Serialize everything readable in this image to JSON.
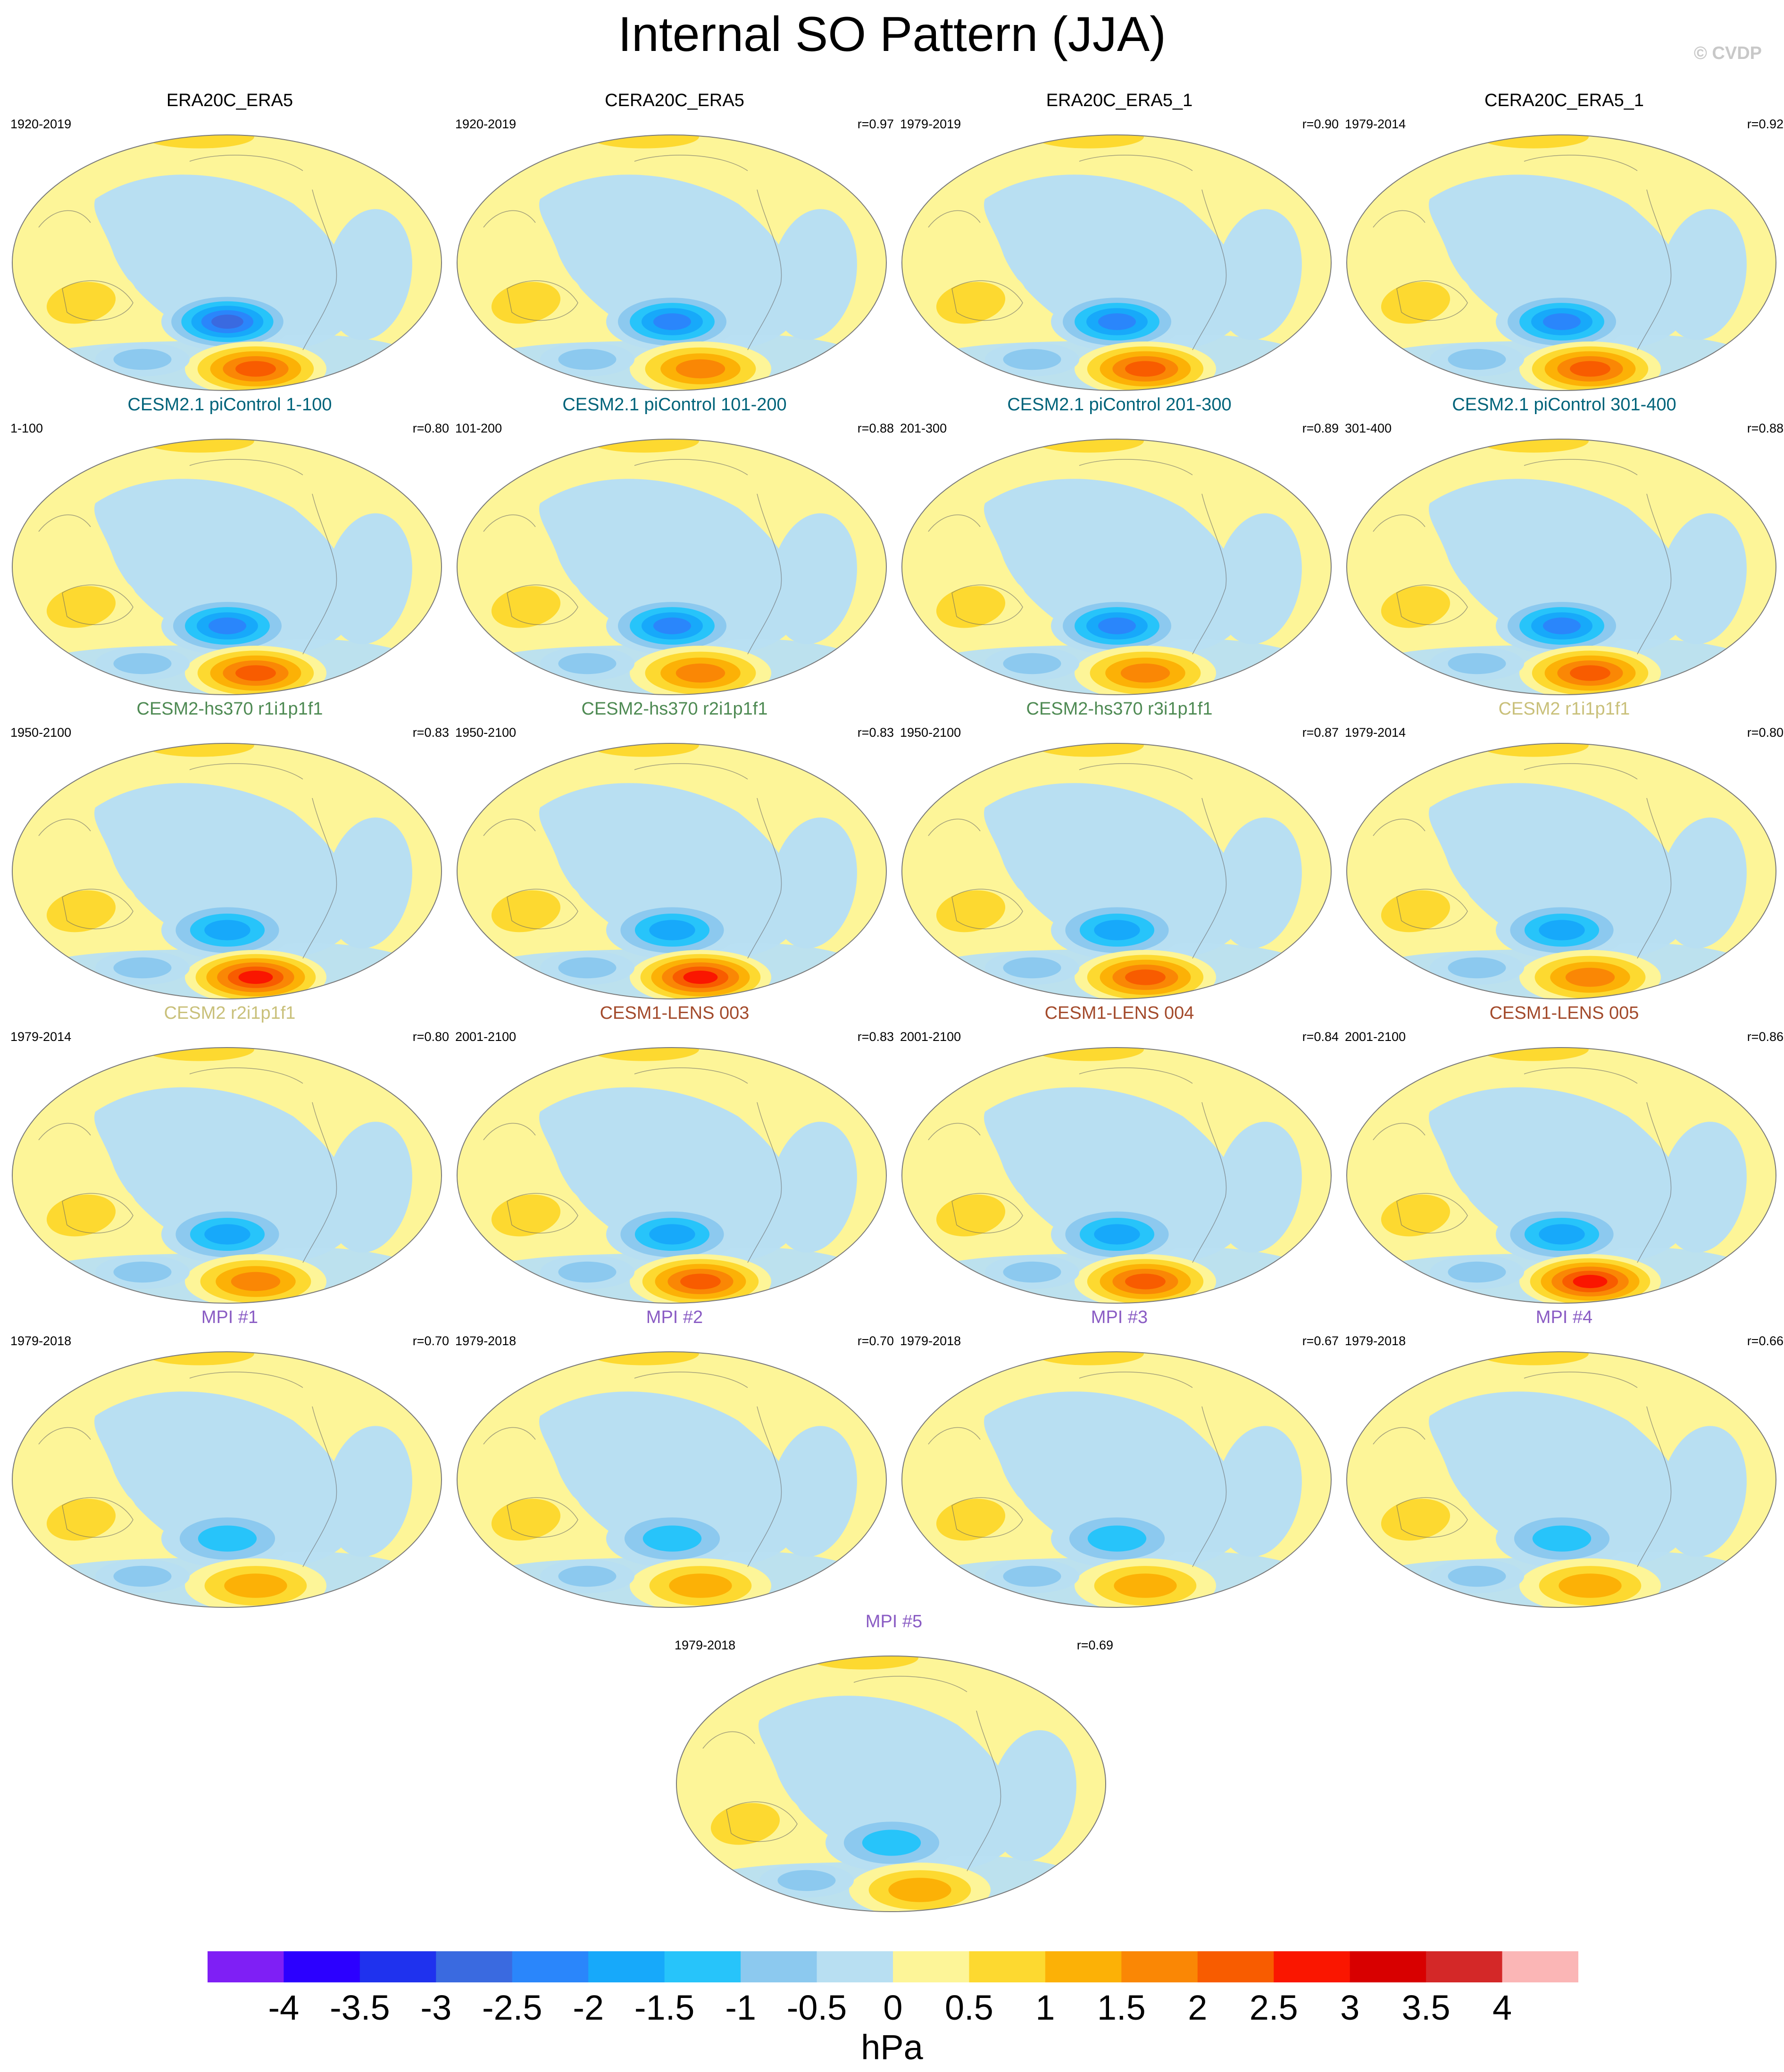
{
  "title": "Internal SO Pattern (JJA)",
  "credit": "© CVDP",
  "panels": [
    {
      "title": "ERA20C_ERA5",
      "color": "#000000",
      "period": "1920-2019",
      "corr": "",
      "vlevel": 4,
      "llevel": 4,
      "hint": 0.3
    },
    {
      "title": "CERA20C_ERA5",
      "color": "#000000",
      "period": "1920-2019",
      "corr": "r=0.97",
      "vlevel": 3,
      "llevel": 3,
      "hint": 0.3
    },
    {
      "title": "ERA20C_ERA5_1",
      "color": "#000000",
      "period": "1979-2019",
      "corr": "r=0.90",
      "vlevel": 3,
      "llevel": 4,
      "hint": 0.5
    },
    {
      "title": "CERA20C_ERA5_1",
      "color": "#000000",
      "period": "1979-2014",
      "corr": "r=0.92",
      "vlevel": 3,
      "llevel": 4,
      "hint": 0.5
    },
    {
      "title": "CESM2.1 piControl 1-100",
      "color": "#00637a",
      "period": "1-100",
      "corr": "r=0.80",
      "vlevel": 3,
      "llevel": 4,
      "hint": 0.3
    },
    {
      "title": "CESM2.1 piControl 101-200",
      "color": "#00637a",
      "period": "101-200",
      "corr": "r=0.88",
      "vlevel": 3,
      "llevel": 3,
      "hint": 0.3
    },
    {
      "title": "CESM2.1 piControl 201-300",
      "color": "#00637a",
      "period": "201-300",
      "corr": "r=0.89",
      "vlevel": 3,
      "llevel": 3,
      "hint": 0.3
    },
    {
      "title": "CESM2.1 piControl 301-400",
      "color": "#00637a",
      "period": "301-400",
      "corr": "r=0.88",
      "vlevel": 3,
      "llevel": 4,
      "hint": 0.3
    },
    {
      "title": "CESM2-hs370 r1i1p1f1",
      "color": "#4e8a53",
      "period": "1950-2100",
      "corr": "r=0.83",
      "vlevel": 2,
      "llevel": 5,
      "hint": 0.3
    },
    {
      "title": "CESM2-hs370 r2i1p1f1",
      "color": "#4e8a53",
      "period": "1950-2100",
      "corr": "r=0.83",
      "vlevel": 2,
      "llevel": 5,
      "hint": 0.3
    },
    {
      "title": "CESM2-hs370 r3i1p1f1",
      "color": "#4e8a53",
      "period": "1950-2100",
      "corr": "r=0.87",
      "vlevel": 2,
      "llevel": 4,
      "hint": 0.3
    },
    {
      "title": "CESM2 r1i1p1f1",
      "color": "#c9c07a",
      "period": "1979-2014",
      "corr": "r=0.80",
      "vlevel": 2,
      "llevel": 3,
      "hint": 0.3
    },
    {
      "title": "CESM2 r2i1p1f1",
      "color": "#c9c07a",
      "period": "1979-2014",
      "corr": "r=0.80",
      "vlevel": 2,
      "llevel": 3,
      "hint": 0.3
    },
    {
      "title": "CESM1-LENS 003",
      "color": "#a34a2b",
      "period": "2001-2100",
      "corr": "r=0.83",
      "vlevel": 2,
      "llevel": 4,
      "hint": 0.3
    },
    {
      "title": "CESM1-LENS 004",
      "color": "#a34a2b",
      "period": "2001-2100",
      "corr": "r=0.84",
      "vlevel": 2,
      "llevel": 4,
      "hint": 0.3
    },
    {
      "title": "CESM1-LENS 005",
      "color": "#a34a2b",
      "period": "2001-2100",
      "corr": "r=0.86",
      "vlevel": 2,
      "llevel": 5,
      "hint": 0.3
    },
    {
      "title": "MPI #1",
      "color": "#8a5cc4",
      "period": "1979-2018",
      "corr": "r=0.70",
      "vlevel": 1,
      "llevel": 2,
      "hint": 0.6
    },
    {
      "title": "MPI #2",
      "color": "#8a5cc4",
      "period": "1979-2018",
      "corr": "r=0.70",
      "vlevel": 1,
      "llevel": 2,
      "hint": 0.7
    },
    {
      "title": "MPI #3",
      "color": "#8a5cc4",
      "period": "1979-2018",
      "corr": "r=0.67",
      "vlevel": 1,
      "llevel": 2,
      "hint": 0.5
    },
    {
      "title": "MPI #4",
      "color": "#8a5cc4",
      "period": "1979-2018",
      "corr": "r=0.66",
      "vlevel": 1,
      "llevel": 2,
      "hint": 0.7
    },
    {
      "title": "MPI #5",
      "color": "#8a5cc4",
      "period": "1979-2018",
      "corr": "r=0.69",
      "vlevel": 1,
      "llevel": 2,
      "hint": 0.7
    }
  ],
  "colorbar": {
    "units": "hPa",
    "levels": [
      "-4",
      "-3.5",
      "-3",
      "-2.5",
      "-2",
      "-1.5",
      "-1",
      "-0.5",
      "0",
      "0.5",
      "1",
      "1.5",
      "2",
      "2.5",
      "3",
      "3.5",
      "4"
    ],
    "colors": [
      "#7f1ff5",
      "#2c00ff",
      "#1f32ee",
      "#3a6ae0",
      "#2a86fb",
      "#17a9fa",
      "#27c4fa",
      "#8cc9ef",
      "#b8dff2",
      "#fdf598",
      "#fdd930",
      "#fcb106",
      "#fa8705",
      "#f85c00",
      "#fa1600",
      "#d80000",
      "#d42828",
      "#fbb6b6"
    ]
  },
  "chart_data": {
    "type": "heatmap",
    "title": "Internal SO Pattern (JJA)",
    "units": "hPa",
    "range": [
      -4,
      4
    ],
    "interval": 0.5
  }
}
